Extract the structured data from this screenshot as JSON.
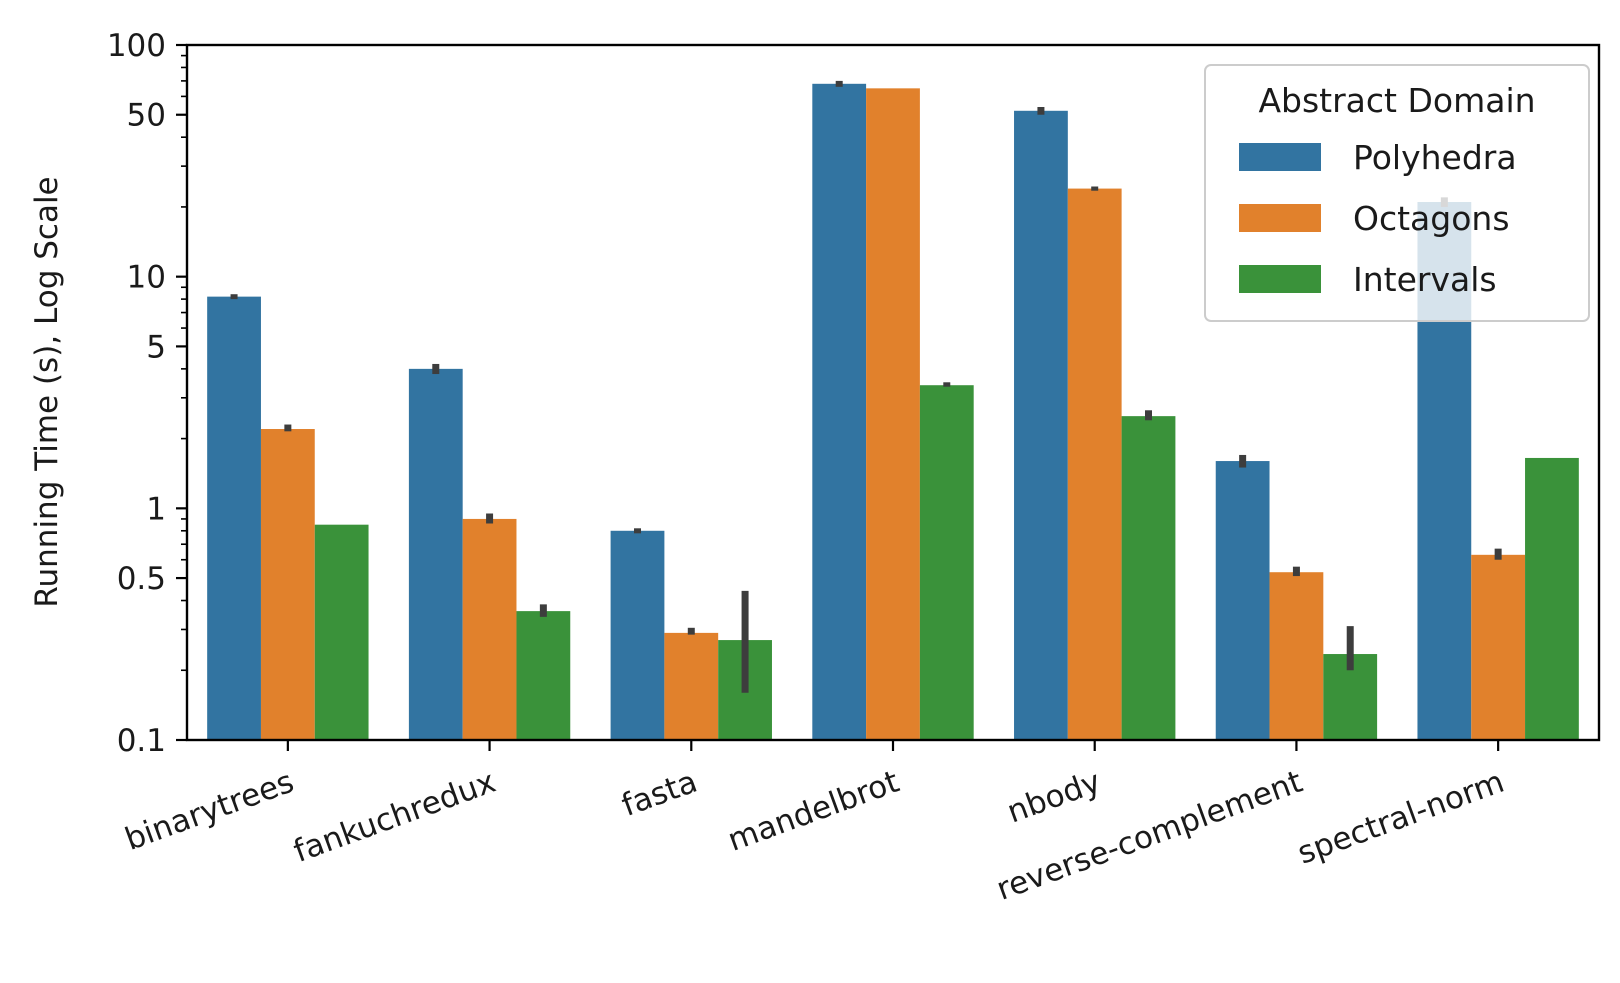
{
  "chart_data": {
    "type": "bar",
    "yscale": "log",
    "ylim": [
      0.1,
      100
    ],
    "ylabel": "Running Time (s), Log Scale",
    "xlabel": "",
    "yticks": [
      {
        "value": 100,
        "label": "100"
      },
      {
        "value": 50,
        "label": "50"
      },
      {
        "value": 10,
        "label": "10"
      },
      {
        "value": 5,
        "label": "5"
      },
      {
        "value": 1,
        "label": "1"
      },
      {
        "value": 0.5,
        "label": "0.5"
      },
      {
        "value": 0.1,
        "label": "0.1"
      }
    ],
    "categories": [
      "binarytrees",
      "fankuchredux",
      "fasta",
      "mandelbrot",
      "nbody",
      "reverse-complement",
      "spectral-norm"
    ],
    "series": [
      {
        "name": "Polyhedra",
        "color": "#3274a1",
        "values": [
          8.2,
          4.0,
          0.8,
          68,
          52,
          1.6,
          21
        ],
        "errors": [
          [
            8.0,
            8.4
          ],
          [
            3.8,
            4.2
          ],
          [
            0.78,
            0.82
          ],
          [
            66,
            70
          ],
          [
            50,
            54
          ],
          [
            1.5,
            1.7
          ],
          [
            20,
            22
          ]
        ]
      },
      {
        "name": "Octagons",
        "color": "#e1812c",
        "values": [
          2.2,
          0.9,
          0.29,
          65,
          24,
          0.53,
          0.63
        ],
        "errors": [
          [
            2.15,
            2.3
          ],
          [
            0.86,
            0.95
          ],
          [
            0.285,
            0.305
          ],
          null,
          [
            23.5,
            24.5
          ],
          [
            0.51,
            0.56
          ],
          [
            0.6,
            0.67
          ]
        ]
      },
      {
        "name": "Intervals",
        "color": "#3a923a",
        "values": [
          0.85,
          0.36,
          0.27,
          3.4,
          2.5,
          0.235,
          1.65
        ],
        "errors": [
          null,
          [
            0.34,
            0.385
          ],
          [
            0.16,
            0.44
          ],
          [
            3.35,
            3.5
          ],
          [
            2.4,
            2.65
          ],
          [
            0.2,
            0.31
          ],
          null
        ]
      }
    ],
    "legend": {
      "title": "Abstract Domain",
      "placement": "top-right"
    },
    "grid": false
  }
}
